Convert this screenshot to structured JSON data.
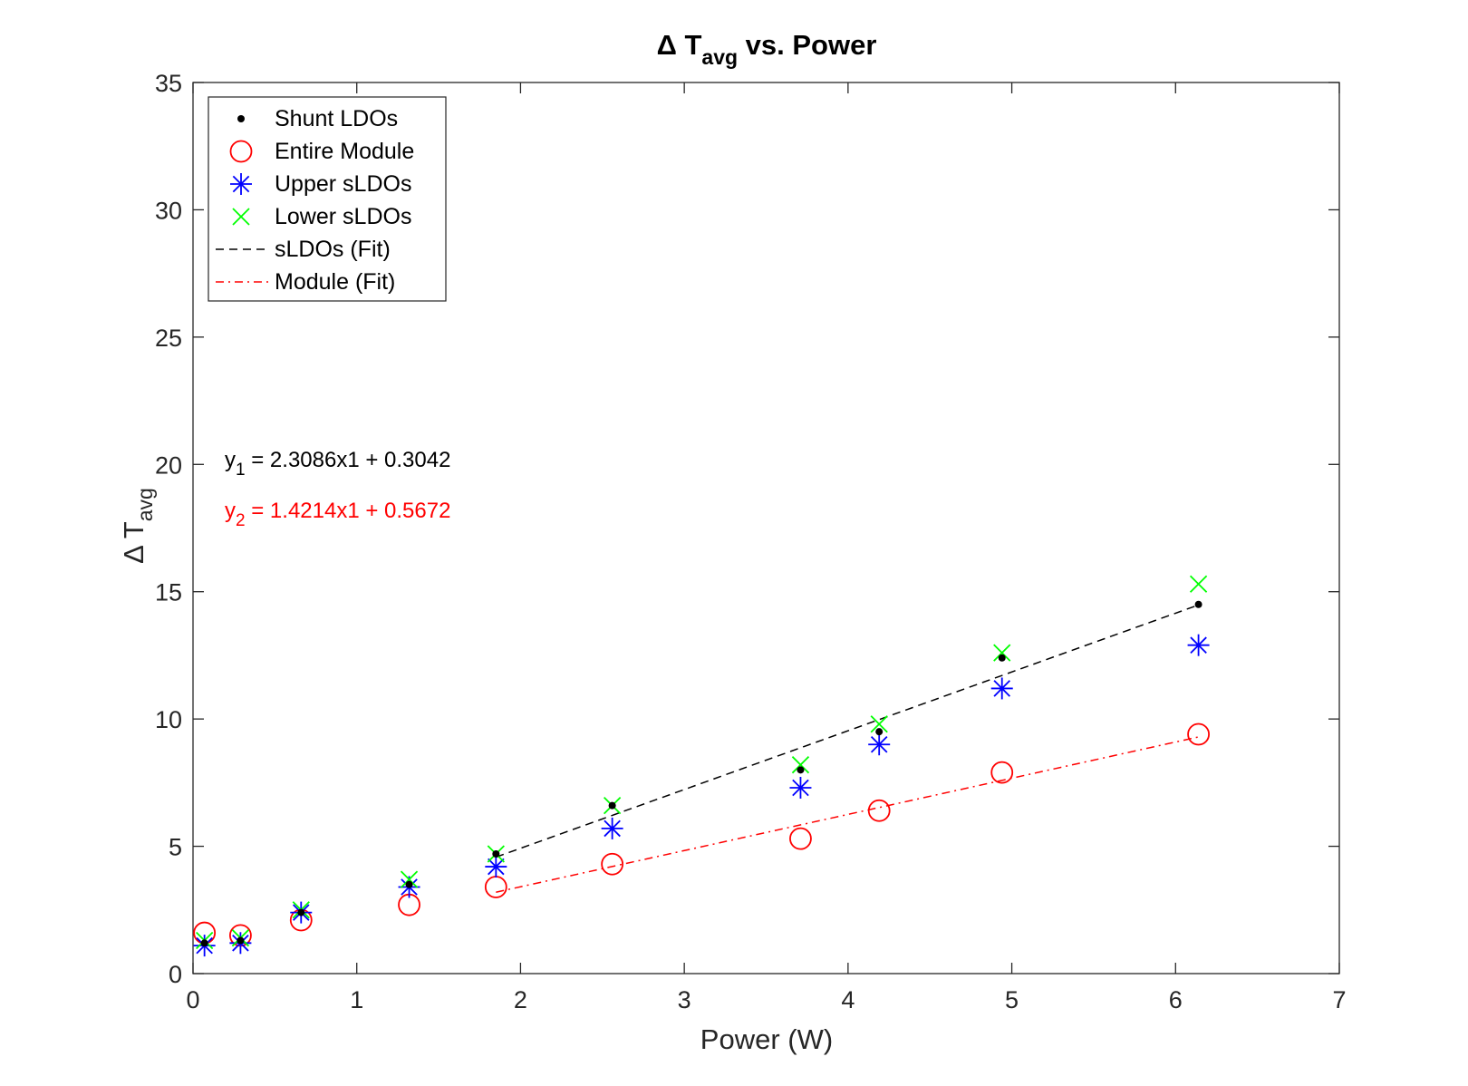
{
  "chart_data": {
    "type": "scatter",
    "title": {
      "main": "Δ T",
      "sub": "avg",
      "suffix": " vs. Power"
    },
    "xlabel": "Power (W)",
    "ylabel": {
      "main": "Δ T",
      "sub": "avg"
    },
    "xlim": [
      0,
      7
    ],
    "ylim": [
      0,
      35
    ],
    "xticks": [
      "0",
      "1",
      "2",
      "3",
      "4",
      "5",
      "6",
      "7"
    ],
    "yticks": [
      "0",
      "5",
      "10",
      "15",
      "20",
      "25",
      "30",
      "35"
    ],
    "grid": false,
    "legend_position": "top-left",
    "series": [
      {
        "name": "Shunt LDOs",
        "marker": "dot",
        "color": "#000000",
        "x": [
          0.07,
          0.29,
          0.66,
          1.32,
          1.85,
          2.56,
          3.71,
          4.19,
          4.94,
          6.14
        ],
        "y": [
          1.2,
          1.3,
          2.4,
          3.5,
          4.7,
          6.6,
          8.0,
          9.5,
          12.4,
          14.5
        ]
      },
      {
        "name": "Entire Module",
        "marker": "circle",
        "color": "#ff0000",
        "x": [
          0.07,
          0.29,
          0.66,
          1.32,
          1.85,
          2.56,
          3.71,
          4.19,
          4.94,
          6.14
        ],
        "y": [
          1.6,
          1.5,
          2.1,
          2.7,
          3.4,
          4.3,
          5.3,
          6.4,
          7.9,
          9.4
        ]
      },
      {
        "name": "Upper sLDOs",
        "marker": "asterisk",
        "color": "#0000ff",
        "x": [
          0.07,
          0.29,
          0.66,
          1.32,
          1.85,
          2.56,
          3.71,
          4.19,
          4.94,
          6.14
        ],
        "y": [
          1.1,
          1.2,
          2.4,
          3.4,
          4.2,
          5.7,
          7.3,
          9.0,
          11.2,
          12.9
        ]
      },
      {
        "name": "Lower sLDOs",
        "marker": "x",
        "color": "#00ff00",
        "x": [
          0.07,
          0.29,
          0.66,
          1.32,
          1.85,
          2.56,
          3.71,
          4.19,
          4.94,
          6.14
        ],
        "y": [
          1.3,
          1.4,
          2.5,
          3.7,
          4.7,
          6.6,
          8.2,
          9.8,
          12.6,
          15.3
        ]
      },
      {
        "name": "sLDOs (Fit)",
        "marker": "dashed-line",
        "color": "#000000",
        "x": [
          1.85,
          6.14
        ],
        "y": [
          4.575,
          14.479
        ]
      },
      {
        "name": "Module (Fit)",
        "marker": "dashdot-line",
        "color": "#ff0000",
        "x": [
          1.85,
          6.14
        ],
        "y": [
          3.197,
          9.295
        ]
      }
    ],
    "annotations": [
      {
        "prefix": "y",
        "sub": "1",
        "rest": " = 2.3086x1 + 0.3042",
        "color": "#000000"
      },
      {
        "prefix": "y",
        "sub": "2",
        "rest": " = 1.4214x1 + 0.5672",
        "color": "#ff0000"
      }
    ]
  }
}
